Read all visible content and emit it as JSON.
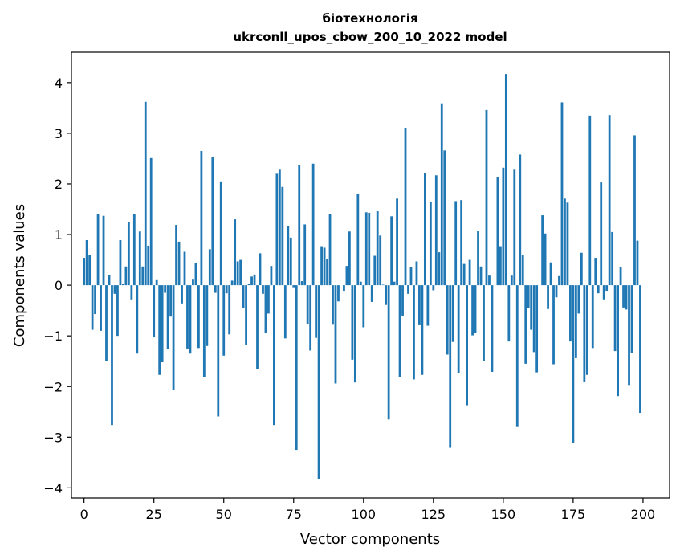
{
  "chart_data": {
    "type": "bar",
    "title": "біотехнологія",
    "subtitle": "ukrconll_upos_cbow_200_10_2022 model",
    "xlabel": "Vector components",
    "ylabel": "Components values",
    "xlim": [
      -4.5,
      209.5
    ],
    "ylim": [
      -4.2,
      4.6
    ],
    "xticks": [
      0,
      25,
      50,
      75,
      100,
      125,
      150,
      175,
      200
    ],
    "yticks": [
      -4,
      -3,
      -2,
      -1,
      0,
      1,
      2,
      3,
      4
    ],
    "grid": false,
    "color": "#1f77b4",
    "x": [
      0,
      1,
      2,
      3,
      4,
      5,
      6,
      7,
      8,
      9,
      10,
      11,
      12,
      13,
      14,
      15,
      16,
      17,
      18,
      19,
      20,
      21,
      22,
      23,
      24,
      25,
      26,
      27,
      28,
      29,
      30,
      31,
      32,
      33,
      34,
      35,
      36,
      37,
      38,
      39,
      40,
      41,
      42,
      43,
      44,
      45,
      46,
      47,
      48,
      49,
      50,
      51,
      52,
      53,
      54,
      55,
      56,
      57,
      58,
      59,
      60,
      61,
      62,
      63,
      64,
      65,
      66,
      67,
      68,
      69,
      70,
      71,
      72,
      73,
      74,
      75,
      76,
      77,
      78,
      79,
      80,
      81,
      82,
      83,
      84,
      85,
      86,
      87,
      88,
      89,
      90,
      91,
      92,
      93,
      94,
      95,
      96,
      97,
      98,
      99,
      100,
      101,
      102,
      103,
      104,
      105,
      106,
      107,
      108,
      109,
      110,
      111,
      112,
      113,
      114,
      115,
      116,
      117,
      118,
      119,
      120,
      121,
      122,
      123,
      124,
      125,
      126,
      127,
      128,
      129,
      130,
      131,
      132,
      133,
      134,
      135,
      136,
      137,
      138,
      139,
      140,
      141,
      142,
      143,
      144,
      145,
      146,
      147,
      148,
      149,
      150,
      151,
      152,
      153,
      154,
      155,
      156,
      157,
      158,
      159,
      160,
      161,
      162,
      163,
      164,
      165,
      166,
      167,
      168,
      169,
      170,
      171,
      172,
      173,
      174,
      175,
      176,
      177,
      178,
      179,
      180,
      181,
      182,
      183,
      184,
      185,
      186,
      187,
      188,
      189,
      190,
      191,
      192,
      193,
      194,
      195,
      196,
      197,
      198,
      199
    ],
    "values": [
      0.54,
      0.89,
      0.6,
      -0.88,
      -0.57,
      1.4,
      -0.9,
      1.37,
      -1.5,
      0.2,
      -2.76,
      -0.17,
      -1.0,
      0.89,
      0.02,
      0.37,
      1.25,
      -0.28,
      1.41,
      -1.35,
      1.06,
      0.37,
      3.62,
      0.78,
      2.51,
      -1.03,
      0.1,
      -1.77,
      -1.52,
      -0.15,
      -1.26,
      -0.62,
      -2.07,
      1.19,
      0.86,
      -0.36,
      0.66,
      -1.25,
      -1.35,
      0.11,
      0.43,
      -1.24,
      2.65,
      -1.82,
      -1.2,
      0.71,
      2.53,
      -0.15,
      -2.59,
      2.05,
      -1.39,
      -0.16,
      -0.97,
      0.09,
      1.3,
      0.47,
      0.5,
      -0.45,
      -1.18,
      0.03,
      0.17,
      0.21,
      -1.66,
      0.63,
      -0.17,
      -0.95,
      -0.56,
      0.38,
      -2.76,
      2.2,
      2.28,
      1.94,
      -1.05,
      1.17,
      0.94,
      -0.04,
      -3.25,
      2.38,
      0.08,
      1.2,
      -0.76,
      -1.29,
      2.4,
      -1.04,
      -3.83,
      0.77,
      0.74,
      0.52,
      1.41,
      -0.78,
      -1.94,
      -0.32,
      0.0,
      -0.11,
      0.38,
      1.06,
      -1.47,
      -1.92,
      1.81,
      0.07,
      -0.83,
      1.44,
      1.43,
      -0.33,
      0.58,
      1.46,
      0.98,
      0.01,
      -0.39,
      -2.65,
      1.36,
      0.07,
      1.71,
      -1.81,
      -0.6,
      3.11,
      -0.17,
      0.35,
      -1.86,
      0.47,
      -0.79,
      -1.77,
      2.22,
      -0.8,
      1.64,
      -0.1,
      2.17,
      0.65,
      3.59,
      2.66,
      -1.37,
      -3.21,
      -1.12,
      1.66,
      -1.74,
      1.68,
      0.42,
      -2.37,
      0.5,
      -0.99,
      -0.95,
      1.08,
      0.37,
      -1.5,
      3.46,
      0.19,
      -1.71,
      0.0,
      2.14,
      0.77,
      2.32,
      4.17,
      -1.11,
      0.19,
      2.28,
      -2.8,
      2.58,
      0.59,
      -1.55,
      -0.45,
      -0.88,
      -1.32,
      -1.72,
      0.0,
      1.38,
      1.02,
      -0.47,
      0.45,
      -1.56,
      -0.24,
      0.18,
      3.61,
      1.71,
      1.63,
      -1.11,
      -3.11,
      -1.44,
      -0.56,
      0.64,
      -1.9,
      -1.77,
      3.35,
      -1.24,
      0.54,
      -0.16,
      2.03,
      -0.28,
      -0.11,
      3.36,
      1.05,
      -1.3,
      -2.19,
      0.35,
      -0.44,
      -0.48,
      -1.97,
      -1.34,
      2.96,
      0.88,
      -2.52
    ]
  }
}
